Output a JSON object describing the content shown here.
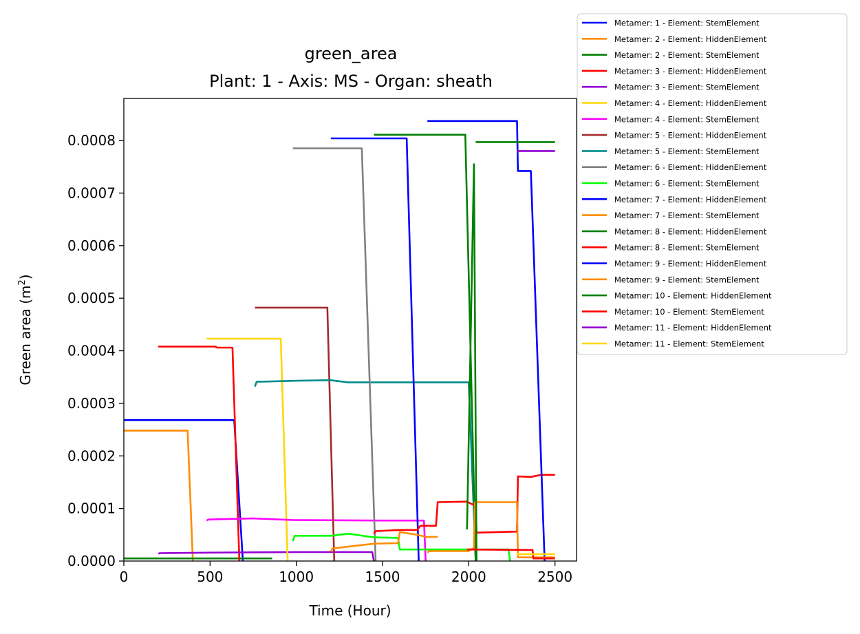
{
  "chart_data": {
    "type": "line",
    "title": "green_area",
    "subtitle": "Plant: 1 - Axis: MS - Organ: sheath",
    "xlabel": "Time (Hour)",
    "ylabel": "Green area (m",
    "ylabel_sup": "2",
    "ylabel_close": ")",
    "xlim": [
      0,
      2625
    ],
    "ylim": [
      0,
      0.00088
    ],
    "xticks": [
      0,
      500,
      1000,
      1500,
      2000,
      2500
    ],
    "xtick_labels": [
      "0",
      "500",
      "1000",
      "1500",
      "2000",
      "2500"
    ],
    "yticks": [
      0,
      0.0001,
      0.0002,
      0.0003,
      0.0004,
      0.0005,
      0.0006,
      0.0007,
      0.0008
    ],
    "ytick_labels": [
      "0.0000",
      "0.0001",
      "0.0002",
      "0.0003",
      "0.0004",
      "0.0005",
      "0.0006",
      "0.0007",
      "0.0008"
    ],
    "legend_position": "outside-top-right",
    "grid": false,
    "series": [
      {
        "name": "Metamer: 1 - Element: StemElement",
        "color": "#0000ff",
        "points": [
          [
            0,
            0.000268
          ],
          [
            640,
            0.000268
          ],
          [
            690,
            0.0
          ]
        ]
      },
      {
        "name": "Metamer: 2 - Element: HiddenElement",
        "color": "#ff8c00",
        "points": [
          [
            0,
            0.000248
          ],
          [
            370,
            0.000248
          ],
          [
            400,
            0.0
          ]
        ]
      },
      {
        "name": "Metamer: 2 - Element: StemElement",
        "color": "#008000",
        "points": [
          [
            0,
            5e-06
          ],
          [
            860,
            5e-06
          ]
        ]
      },
      {
        "name": "Metamer: 3 - Element: HiddenElement",
        "color": "#ff0000",
        "points": [
          [
            200,
            0.000408
          ],
          [
            530,
            0.000408
          ],
          [
            540,
            0.000406
          ],
          [
            630,
            0.000406
          ],
          [
            670,
            0.0
          ]
        ]
      },
      {
        "name": "Metamer: 3 - Element: StemElement",
        "color": "#9400d3",
        "points": [
          [
            200,
            1.4e-05
          ],
          [
            210,
            1.5e-05
          ],
          [
            500,
            1.6e-05
          ],
          [
            1000,
            1.7e-05
          ],
          [
            1440,
            1.7e-05
          ],
          [
            1450,
            0.0
          ]
        ]
      },
      {
        "name": "Metamer: 4 - Element: HiddenElement",
        "color": "#ffd700",
        "points": [
          [
            480,
            0.000423
          ],
          [
            910,
            0.000423
          ],
          [
            950,
            0.0
          ]
        ]
      },
      {
        "name": "Metamer: 4 - Element: StemElement",
        "color": "#ff00ff",
        "points": [
          [
            480,
            7.7e-05
          ],
          [
            490,
            7.9e-05
          ],
          [
            750,
            8.1e-05
          ],
          [
            980,
            7.8e-05
          ],
          [
            1500,
            7.7e-05
          ],
          [
            1740,
            7.7e-05
          ],
          [
            1750,
            0.0
          ]
        ]
      },
      {
        "name": "Metamer: 5 - Element: HiddenElement",
        "color": "#a52a2a",
        "points": [
          [
            760,
            0.000482
          ],
          [
            1180,
            0.000482
          ],
          [
            1220,
            0.0
          ]
        ]
      },
      {
        "name": "Metamer: 5 - Element: StemElement",
        "color": "#008b8b",
        "points": [
          [
            760,
            0.000332
          ],
          [
            770,
            0.000341
          ],
          [
            1000,
            0.000343
          ],
          [
            1200,
            0.000344
          ],
          [
            1300,
            0.00034
          ],
          [
            1600,
            0.00034
          ],
          [
            2000,
            0.00034
          ],
          [
            2040,
            0.0
          ]
        ]
      },
      {
        "name": "Metamer: 6 - Element: HiddenElement",
        "color": "#808080",
        "points": [
          [
            980,
            0.000785
          ],
          [
            1380,
            0.000785
          ],
          [
            1460,
            0.0
          ]
        ]
      },
      {
        "name": "Metamer: 6 - Element: StemElement",
        "color": "#00ff00",
        "points": [
          [
            980,
            3.8e-05
          ],
          [
            990,
            4.8e-05
          ],
          [
            1200,
            4.8e-05
          ],
          [
            1300,
            5.2e-05
          ],
          [
            1450,
            4.5e-05
          ],
          [
            1590,
            4.4e-05
          ],
          [
            1600,
            2.2e-05
          ],
          [
            2230,
            2.2e-05
          ],
          [
            2240,
            0.0
          ]
        ]
      },
      {
        "name": "Metamer: 7 - Element: HiddenElement",
        "color": "#0000ff",
        "points": [
          [
            1200,
            0.000804
          ],
          [
            1640,
            0.000804
          ],
          [
            1710,
            0.0
          ]
        ]
      },
      {
        "name": "Metamer: 7 - Element: StemElement",
        "color": "#ff8c00",
        "points": [
          [
            1200,
            1.8e-05
          ],
          [
            1210,
            2.4e-05
          ],
          [
            1450,
            3.3e-05
          ],
          [
            1590,
            3.4e-05
          ],
          [
            1600,
            5.5e-05
          ],
          [
            1700,
            5e-05
          ],
          [
            1750,
            4.6e-05
          ],
          [
            1820,
            4.6e-05
          ]
        ]
      },
      {
        "name": "Metamer: 8 - Element: HiddenElement",
        "color": "#008000",
        "points": [
          [
            1450,
            0.000811
          ],
          [
            1980,
            0.000811
          ],
          [
            2040,
            0.0
          ]
        ]
      },
      {
        "name": "Metamer: 8 - Element: StemElement",
        "color": "#ff0000",
        "points": [
          [
            1450,
            5.2e-05
          ],
          [
            1460,
            5.7e-05
          ],
          [
            1600,
            5.9e-05
          ],
          [
            1700,
            5.9e-05
          ],
          [
            1720,
            6.7e-05
          ],
          [
            1810,
            6.7e-05
          ],
          [
            1820,
            0.000112
          ],
          [
            1990,
            0.000113
          ],
          [
            2020,
            0.000108
          ],
          [
            2040,
            0.000105
          ],
          [
            2045,
            5.4e-05
          ],
          [
            2280,
            5.6e-05
          ],
          [
            2285,
            0.000161
          ],
          [
            2360,
            0.00016
          ],
          [
            2420,
            0.000164
          ],
          [
            2500,
            0.000164
          ]
        ]
      },
      {
        "name": "Metamer: 9 - Element: HiddenElement",
        "color": "#0000ff",
        "points": [
          [
            1760,
            0.000837
          ],
          [
            2280,
            0.000837
          ],
          [
            2285,
            0.000742
          ],
          [
            2360,
            0.000742
          ],
          [
            2440,
            0.0
          ]
        ]
      },
      {
        "name": "Metamer: 9 - Element: StemElement",
        "color": "#ff8c00",
        "points": [
          [
            1760,
            1.6e-05
          ],
          [
            1770,
            1.9e-05
          ],
          [
            2000,
            1.9e-05
          ],
          [
            2030,
            2.5e-05
          ],
          [
            2035,
            0.000112
          ],
          [
            2280,
            0.000112
          ],
          [
            2285,
            7e-06
          ],
          [
            2500,
            7e-06
          ]
        ]
      },
      {
        "name": "Metamer: 10 - Element: HiddenElement",
        "color": "#008000",
        "points": [
          [
            1990,
            6e-05
          ],
          [
            2030,
            0.000755
          ],
          [
            2045,
            0.0
          ]
        ]
      },
      {
        "name": "Metamer: 10 - Element: StemElement",
        "color": "#ff0000",
        "points": [
          [
            1990,
            2.2e-05
          ],
          [
            2370,
            2.1e-05
          ],
          [
            2375,
            5e-06
          ],
          [
            2500,
            5e-06
          ]
        ]
      },
      {
        "name": "Metamer: 11 - Element: HiddenElement",
        "color": "#9400d3",
        "points": [
          [
            2280,
            0.00078
          ],
          [
            2500,
            0.00078
          ]
        ]
      },
      {
        "name": "Metamer: 11 - Element: StemElement",
        "color": "#ffd700",
        "points": [
          [
            2280,
            1.3e-05
          ],
          [
            2500,
            1.3e-05
          ]
        ]
      },
      {
        "name": "",
        "color": "#008000",
        "points": [
          [
            2040,
            0.000797
          ],
          [
            2500,
            0.000797
          ]
        ]
      }
    ]
  }
}
